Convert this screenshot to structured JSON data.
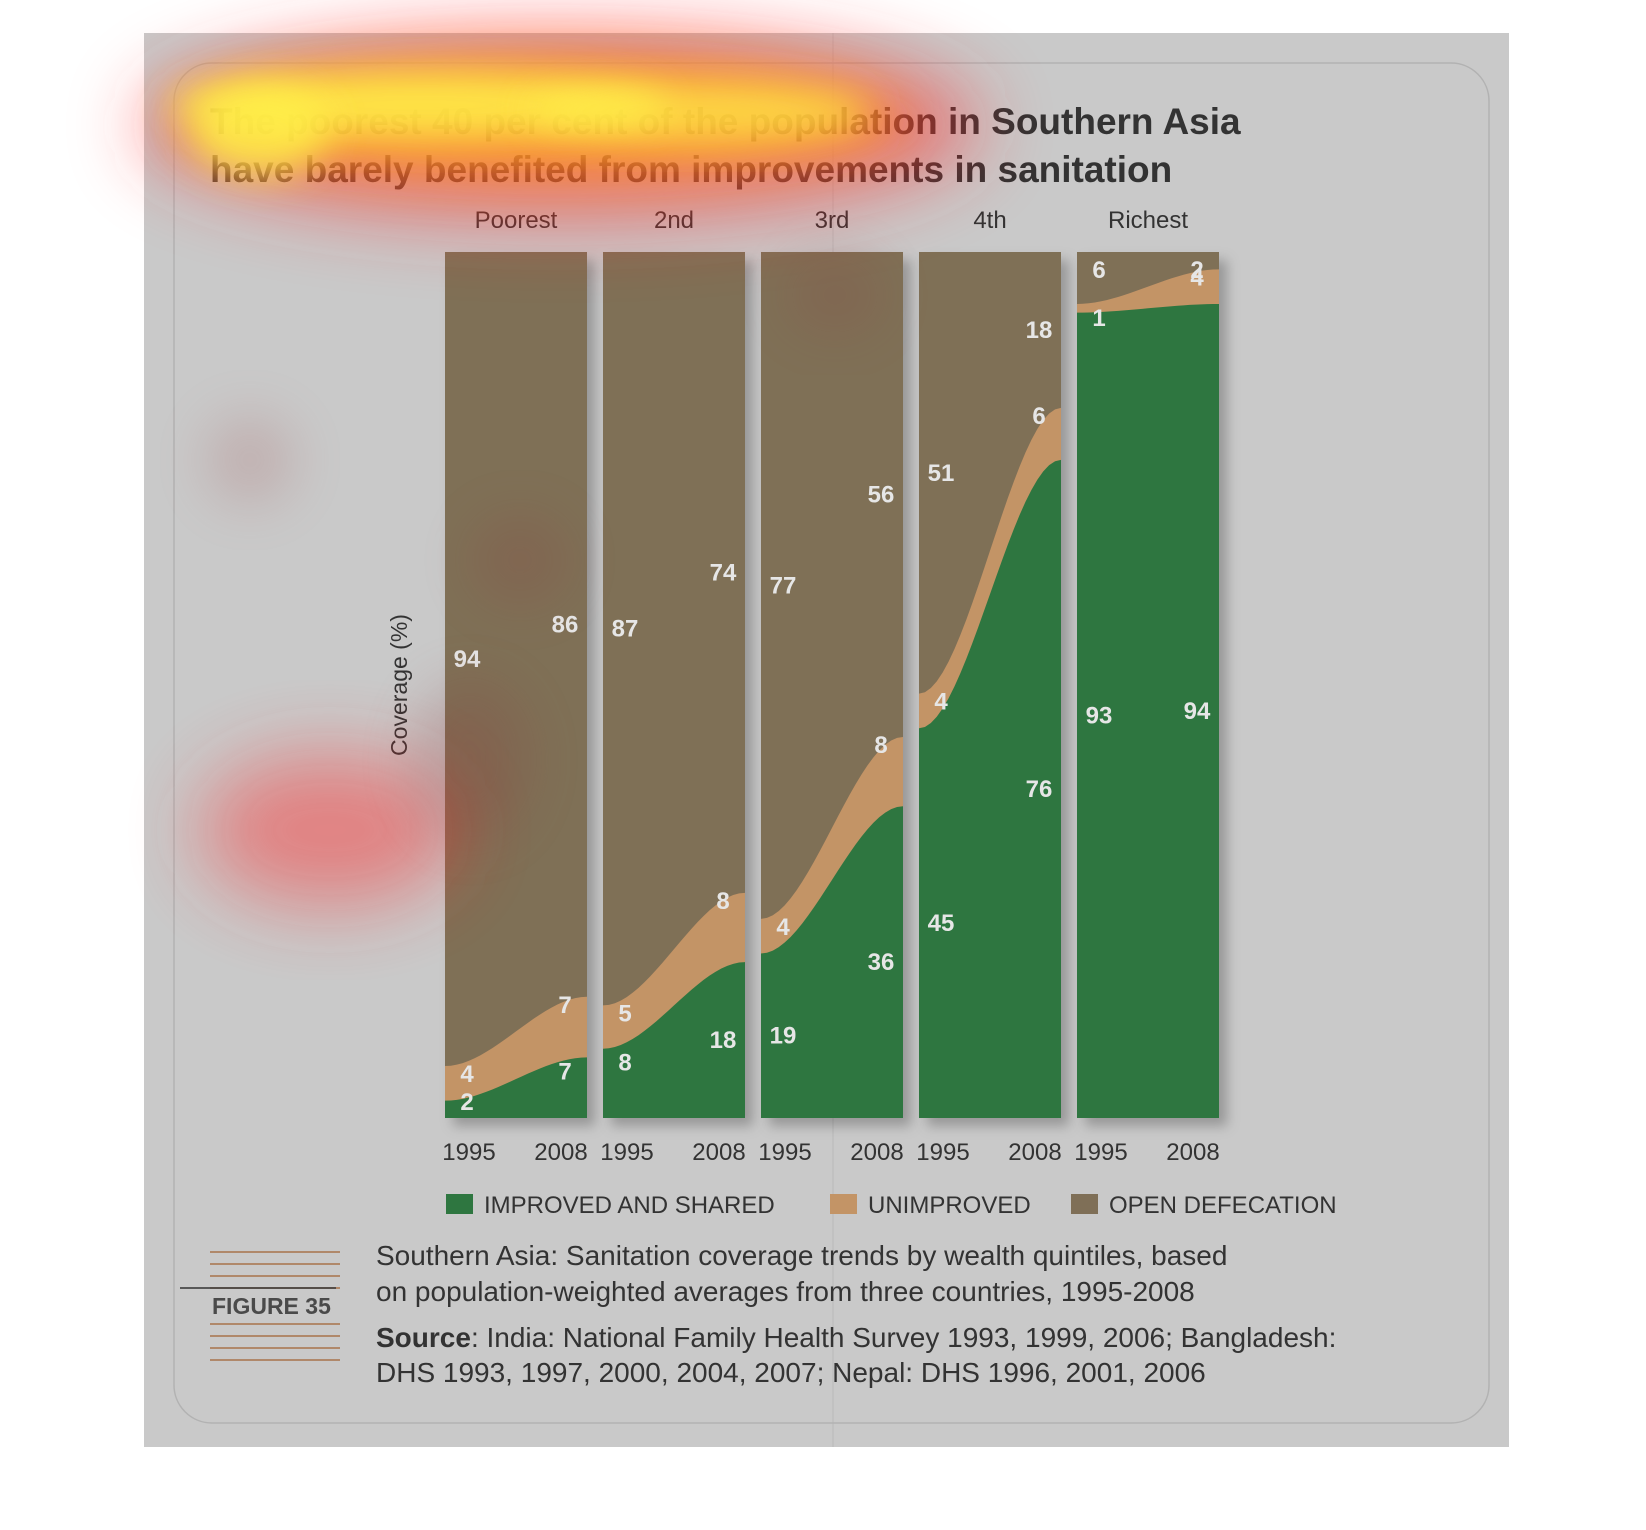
{
  "title": {
    "line1": "The poorest 40 per cent of the population in Southern Asia",
    "line2": "have barely benefited from improvements in sanitation"
  },
  "colors": {
    "panel_bg": "#c9c9c9",
    "improved": "#2e7640",
    "unimproved": "#c39466",
    "open_defecation": "#7f6f57",
    "label_text": "#e6e6e6",
    "figure_rule": "#a8734a"
  },
  "chart_data": {
    "type": "area",
    "stacked": true,
    "ylabel": "Coverage (%)",
    "ylim": [
      0,
      100
    ],
    "groups": [
      {
        "name": "Poorest",
        "years": [
          "1995",
          "2008"
        ],
        "improved": [
          2,
          7
        ],
        "unimproved": [
          4,
          7
        ],
        "open_defecation": [
          94,
          86
        ]
      },
      {
        "name": "2nd",
        "years": [
          "1995",
          "2008"
        ],
        "improved": [
          8,
          18
        ],
        "unimproved": [
          5,
          8
        ],
        "open_defecation": [
          87,
          74
        ]
      },
      {
        "name": "3rd",
        "years": [
          "1995",
          "2008"
        ],
        "improved": [
          19,
          36
        ],
        "unimproved": [
          4,
          8
        ],
        "open_defecation": [
          77,
          56
        ]
      },
      {
        "name": "4th",
        "years": [
          "1995",
          "2008"
        ],
        "improved": [
          45,
          76
        ],
        "unimproved": [
          4,
          6
        ],
        "open_defecation": [
          51,
          18
        ]
      },
      {
        "name": "Richest",
        "years": [
          "1995",
          "2008"
        ],
        "improved": [
          93,
          94
        ],
        "unimproved": [
          1,
          4
        ],
        "open_defecation": [
          6,
          2
        ]
      }
    ],
    "legend": [
      "IMPROVED AND SHARED",
      "UNIMPROVED",
      "OPEN DEFECATION"
    ],
    "legend_position": "bottom",
    "grid": false
  },
  "caption": {
    "figure_label": "FIGURE 35",
    "line1": "Southern Asia: Sanitation coverage trends by wealth quintiles, based",
    "line2": "on population-weighted averages from three countries, 1995-2008",
    "source_label": "Source",
    "source_line1": ": India: National Family Health Survey 1993, 1999, 2006; Bangladesh:",
    "source_line2": "DHS 1993, 1997, 2000, 2004, 2007; Nepal: DHS 1996, 2001, 2006"
  }
}
